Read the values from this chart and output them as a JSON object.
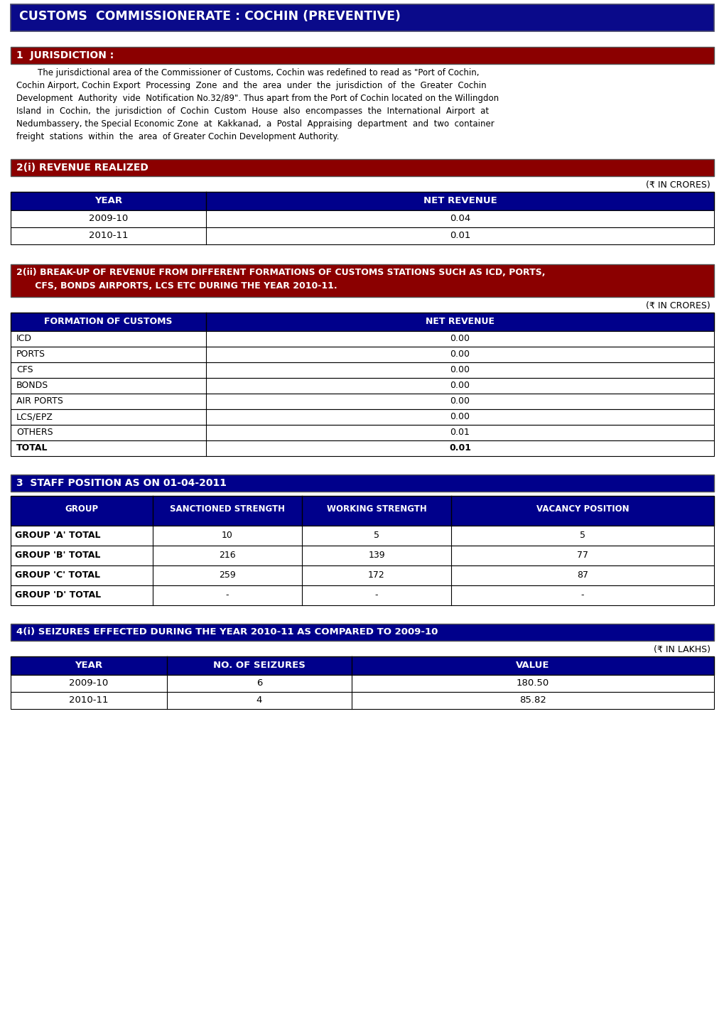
{
  "main_title": "CUSTOMS  COMMISSIONERATE : COCHIN (PREVENTIVE)",
  "main_title_bg": "#0a0a8a",
  "main_title_color": "#ffffff",
  "sec1_title": "1  JURISDICTION :",
  "sec1_bg": "#8b0000",
  "sec1_color": "#ffffff",
  "sec1_body_lines": [
    "        The jurisdictional area of the Commissioner of Customs, Cochin was redefined to read as \"Port of Cochin,",
    "Cochin Airport, Cochin Export  Processing  Zone  and  the  area  under  the  jurisdiction  of  the  Greater  Cochin",
    "Development  Authority  vide  Notification No.32/89\". Thus apart from the Port of Cochin located on the Willingdon",
    "Island  in  Cochin,  the  jurisdiction  of  Cochin  Custom  House  also  encompasses  the  International  Airport  at",
    "Nedumbassery, the Special Economic Zone  at  Kakkanad,  a  Postal  Appraising  department  and  two  container",
    "freight  stations  within  the  area  of Greater Cochin Development Authority."
  ],
  "sec2i_title": "2(i) REVENUE REALIZED",
  "sec2i_bg": "#8b0000",
  "sec2i_color": "#ffffff",
  "sec2i_unit": "(₹ IN CRORES)",
  "sec2i_headers": [
    "YEAR",
    "NET REVENUE"
  ],
  "sec2i_rows": [
    [
      "2009-10",
      "0.04"
    ],
    [
      "2010-11",
      "0.01"
    ]
  ],
  "table_header_bg": "#00008b",
  "table_header_color": "#ffffff",
  "table_row_bg": "#ffffff",
  "table_row_color": "#000000",
  "sec2ii_title_line1": "2(ii) BREAK-UP OF REVENUE FROM DIFFERENT FORMATIONS OF CUSTOMS STATIONS SUCH AS ICD, PORTS,",
  "sec2ii_title_line2": "      CFS, BONDS AIRPORTS, LCS ETC DURING THE YEAR 2010-11.",
  "sec2ii_bg": "#8b0000",
  "sec2ii_color": "#ffffff",
  "sec2ii_unit": "(₹ IN CRORES)",
  "sec2ii_headers": [
    "FORMATION OF CUSTOMS",
    "NET REVENUE"
  ],
  "sec2ii_rows": [
    [
      "ICD",
      "0.00"
    ],
    [
      "PORTS",
      "0.00"
    ],
    [
      "CFS",
      "0.00"
    ],
    [
      "BONDS",
      "0.00"
    ],
    [
      "AIR PORTS",
      "0.00"
    ],
    [
      "LCS/EPZ",
      "0.00"
    ],
    [
      "OTHERS",
      "0.01"
    ],
    [
      "TOTAL",
      "0.01"
    ]
  ],
  "sec3_title": "3  STAFF POSITION AS ON 01-04-2011",
  "sec3_bg": "#00008b",
  "sec3_color": "#ffffff",
  "sec3_headers": [
    "GROUP",
    "SANCTIONED STRENGTH",
    "WORKING STRENGTH",
    "VACANCY POSITION"
  ],
  "sec3_rows": [
    [
      "GROUP 'A' TOTAL",
      "10",
      "5",
      "5"
    ],
    [
      "GROUP 'B' TOTAL",
      "216",
      "139",
      "77"
    ],
    [
      "GROUP 'C' TOTAL",
      "259",
      "172",
      "87"
    ],
    [
      "GROUP 'D' TOTAL",
      "-",
      "-",
      "-"
    ]
  ],
  "sec4i_title": "4(i) SEIZURES EFFECTED DURING THE YEAR 2010-11 AS COMPARED TO 2009-10",
  "sec4i_bg": "#00008b",
  "sec4i_color": "#ffffff",
  "sec4i_unit": "(₹ IN LAKHS)",
  "sec4i_headers": [
    "YEAR",
    "NO. OF SEIZURES",
    "VALUE"
  ],
  "sec4i_rows": [
    [
      "2009-10",
      "6",
      "180.50"
    ],
    [
      "2010-11",
      "4",
      "85.82"
    ]
  ],
  "bg_color": "#ffffff"
}
